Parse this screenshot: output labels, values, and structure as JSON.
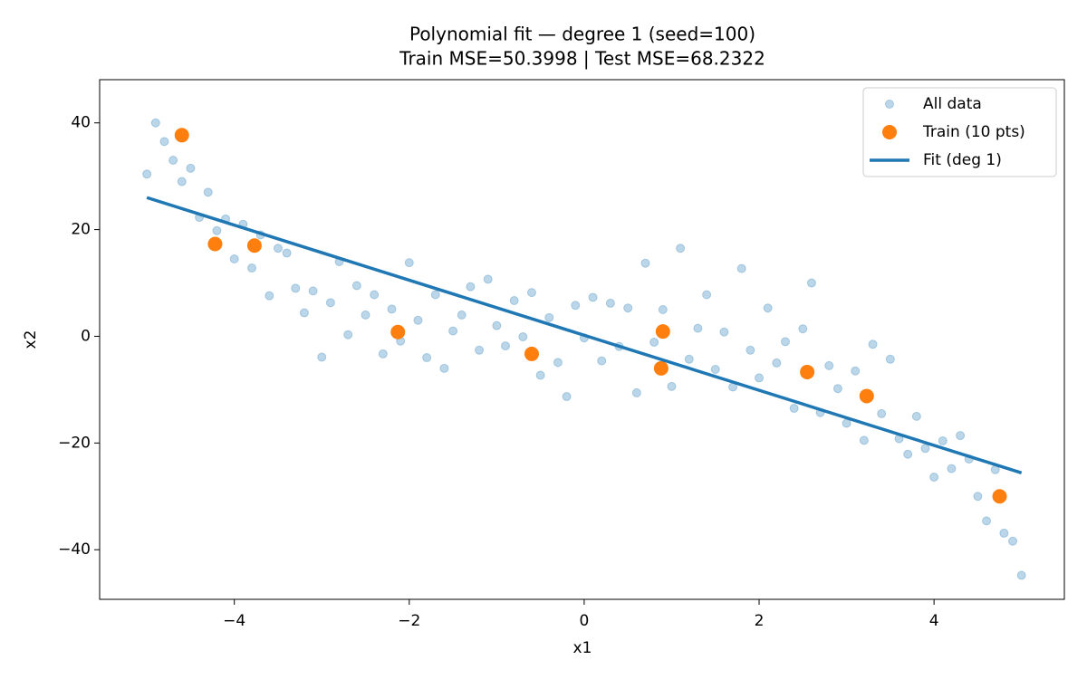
{
  "chart_data": {
    "type": "scatter",
    "title": "Polynomial fit — degree 1 (seed=100)",
    "subtitle": "Train MSE=50.3998 | Test MSE=68.2322",
    "x_label": "x1",
    "y_label": "x2",
    "xlim": [
      -5.54,
      5.49
    ],
    "ylim": [
      -49.3,
      48.1
    ],
    "xticks": [
      {
        "value": -4,
        "label": "−4"
      },
      {
        "value": -2,
        "label": "−2"
      },
      0,
      2,
      4
    ],
    "yticks": [
      {
        "value": -40,
        "label": "−40"
      },
      {
        "value": -20,
        "label": "−20"
      },
      0,
      20,
      40
    ],
    "legend": "upper right",
    "series": [
      {
        "name": "All data",
        "mark": "scatter",
        "color": "#1f77b4",
        "opacity": 0.3,
        "x": [
          -5.0,
          -4.9,
          -4.8,
          -4.7,
          -4.6,
          -4.5,
          -4.4,
          -4.3,
          -4.2,
          -4.1,
          -4.0,
          -3.9,
          -3.8,
          -3.7,
          -3.6,
          -3.5,
          -3.4,
          -3.3,
          -3.2,
          -3.1,
          -3.0,
          -2.9,
          -2.8,
          -2.7,
          -2.6,
          -2.5,
          -2.4,
          -2.3,
          -2.2,
          -2.1,
          -2.0,
          -1.9,
          -1.8,
          -1.7,
          -1.6,
          -1.5,
          -1.4,
          -1.3,
          -1.2,
          -1.1,
          -1.0,
          -0.9,
          -0.8,
          -0.7,
          -0.6,
          -0.5,
          -0.4,
          -0.3,
          -0.2,
          -0.1,
          0.0,
          0.1,
          0.2,
          0.3,
          0.4,
          0.5,
          0.6,
          0.7,
          0.8,
          0.9,
          1.0,
          1.1,
          1.2,
          1.3,
          1.4,
          1.5,
          1.6,
          1.7,
          1.8,
          1.9,
          2.0,
          2.1,
          2.2,
          2.3,
          2.4,
          2.5,
          2.6,
          2.7,
          2.8,
          2.9,
          3.0,
          3.1,
          3.2,
          3.3,
          3.4,
          3.5,
          3.6,
          3.7,
          3.8,
          3.9,
          4.0,
          4.1,
          4.2,
          4.3,
          4.4,
          4.5,
          4.6,
          4.7,
          4.8,
          4.9,
          5.0
        ],
        "y": [
          30.4,
          40.0,
          36.5,
          33.0,
          29.0,
          31.5,
          22.3,
          27.0,
          19.8,
          22.0,
          14.5,
          21.0,
          12.8,
          19.0,
          7.6,
          16.5,
          15.6,
          9.0,
          4.4,
          8.5,
          -3.9,
          6.3,
          14.0,
          0.3,
          9.5,
          4.0,
          7.8,
          -3.3,
          5.1,
          -0.9,
          13.8,
          3.0,
          -4.0,
          7.8,
          -6.0,
          1.0,
          4.0,
          9.3,
          -2.6,
          10.7,
          2.0,
          -1.8,
          6.7,
          -0.1,
          8.2,
          -7.3,
          3.5,
          -4.9,
          -11.3,
          5.8,
          -0.3,
          7.3,
          -4.6,
          6.2,
          -1.9,
          5.3,
          -10.6,
          13.7,
          -1.1,
          5.0,
          -9.4,
          16.5,
          -4.3,
          1.5,
          7.8,
          -6.2,
          0.8,
          -9.5,
          12.7,
          -2.6,
          -7.8,
          5.3,
          -5.0,
          -1.0,
          -13.5,
          1.4,
          10.0,
          -14.3,
          -5.5,
          -9.8,
          -16.3,
          -6.5,
          -19.5,
          -1.5,
          -14.5,
          -4.3,
          -19.2,
          -22.1,
          -15.0,
          -21.0,
          -26.4,
          -19.6,
          -24.8,
          -18.6,
          -23.0,
          -30.0,
          -34.6,
          -25.0,
          -36.9,
          -38.4,
          -44.8
        ]
      },
      {
        "name": "Train (10 pts)",
        "mark": "scatter",
        "color": "#ff7f0e",
        "opacity": 1,
        "x": [
          -4.6,
          -4.22,
          -3.77,
          -2.13,
          -0.6,
          0.88,
          0.9,
          2.55,
          3.23,
          4.75
        ],
        "y": [
          37.7,
          17.3,
          17.0,
          0.8,
          -3.3,
          -6.0,
          0.9,
          -6.7,
          -11.2,
          -30.0
        ]
      },
      {
        "name": "Fit (deg 1)",
        "mark": "line",
        "color": "#1f77b4",
        "opacity": 1,
        "x": [
          -5,
          5
        ],
        "y": [
          26.0,
          -25.6
        ]
      }
    ]
  }
}
